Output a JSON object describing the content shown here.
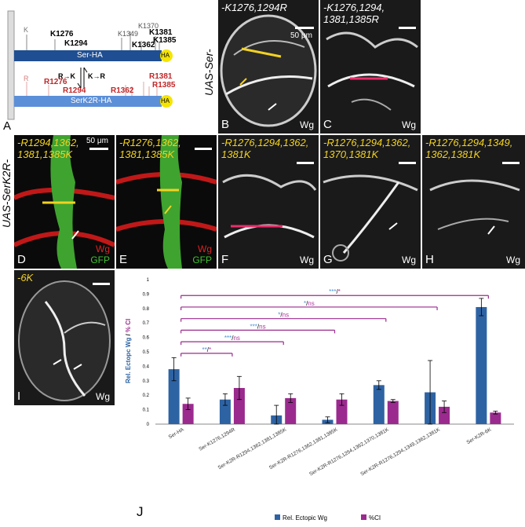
{
  "panelA": {
    "letter": "A",
    "ser_label": "Ser-HA",
    "serk2r_label": "SerK2R-HA",
    "ha": "HA",
    "k_sites": [
      "K",
      "K1276",
      "K1294",
      "K1349",
      "K1370",
      "K1362",
      "K1381",
      "K1385"
    ],
    "r_sites": [
      "R",
      "R1276",
      "R1294",
      "R1362",
      "R1381",
      "R1385"
    ],
    "arrow_up": "R→K",
    "arrow_down": "K→R"
  },
  "uas_ser": "UAS-Ser-",
  "uas_serk2r": "UAS-SerK2R-",
  "panels": {
    "B": {
      "letter": "B",
      "title": "-K1276,1294R",
      "scale": "50 μm",
      "stain": "Wg"
    },
    "C": {
      "letter": "C",
      "title": "-K1276,1294,\n1381,1385R",
      "stain": "Wg"
    },
    "D": {
      "letter": "D",
      "title": "-R1294,1362,\n1381,1385K",
      "scale": "50 μm",
      "stain": "Wg",
      "stain2": "GFP"
    },
    "E": {
      "letter": "E",
      "title": "-R1276,1362,\n1381,1385K",
      "stain": "Wg",
      "stain2": "GFP"
    },
    "F": {
      "letter": "F",
      "title": "-R1276,1294,1362,\n1381K",
      "stain": "Wg"
    },
    "G": {
      "letter": "G",
      "title": "-R1276,1294,1362,\n1370,1381K",
      "stain": "Wg"
    },
    "H": {
      "letter": "H",
      "title": "-R1276,1294,1349,\n1362,1381K",
      "stain": "Wg"
    },
    "I": {
      "letter": "I",
      "title": "-6K",
      "stain": "Wg"
    },
    "J": {
      "letter": "J"
    }
  },
  "colors": {
    "blue": "#2e63a3",
    "purple": "#9b2a8e",
    "yellow": "#f2d224",
    "pink": "#e8306a",
    "sig_blue": "#4a90d9",
    "sig_purple": "#b03aa0"
  },
  "chart_data": {
    "type": "bar",
    "ylabel_parts": [
      "Rel. Ectopc Wg",
      " / ",
      "% CI"
    ],
    "ylim": [
      0,
      1
    ],
    "yticks": [
      "0",
      "0.1",
      "0.2",
      "0.3",
      "0.4",
      "0.5",
      "0.6",
      "0.7",
      "0.8",
      "0.9",
      "1"
    ],
    "categories": [
      "Ser-HA",
      "Ser-K1276,1294R",
      "Ser-K2R-R1294,1362,1381,1385K",
      "Ser-K2R-R1276,1362,1381,1385K",
      "Ser-K2R-R1276,1294,1362,1370,1381K",
      "Ser-K2R-R1276,1294,1349,1362,1381K",
      "Ser-K2R-6K"
    ],
    "series": [
      {
        "name": "Rel. Ectopic Wg",
        "values": [
          0.38,
          0.17,
          0.06,
          0.03,
          0.27,
          0.22,
          0.81
        ],
        "err": [
          0.08,
          0.04,
          0.07,
          0.02,
          0.03,
          0.22,
          0.06
        ]
      },
      {
        "name": "%CI",
        "values": [
          0.14,
          0.25,
          0.18,
          0.17,
          0.16,
          0.12,
          0.08
        ],
        "err": [
          0.04,
          0.08,
          0.03,
          0.04,
          0.01,
          0.04,
          0.01
        ]
      }
    ],
    "significance": [
      {
        "to": 1,
        "blue": "**",
        "purple": "*"
      },
      {
        "to": 2,
        "blue": "***",
        "purple": "ns"
      },
      {
        "to": 3,
        "blue": "***",
        "purple": "ns"
      },
      {
        "to": 4,
        "blue": "*",
        "purple": "ns"
      },
      {
        "to": 5,
        "blue": "*",
        "purple": "ns"
      },
      {
        "to": 6,
        "blue": "***",
        "purple": "*"
      }
    ],
    "legend": [
      "Rel. Ectopic Wg",
      "%CI"
    ]
  }
}
